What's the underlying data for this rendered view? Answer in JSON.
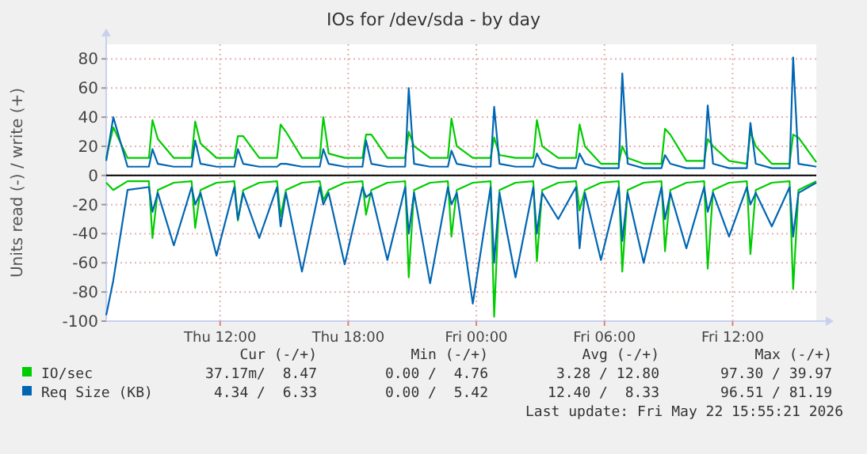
{
  "chart_data": {
    "type": "line",
    "title": "IOs for /dev/sda - by day",
    "ylabel": "Units read (-) / write (+)",
    "x": [
      "2026-05-21T06:40",
      "2026-05-21T07:00",
      "2026-05-21T07:40",
      "2026-05-21T08:40",
      "2026-05-21T08:50",
      "2026-05-21T09:05",
      "2026-05-21T09:50",
      "2026-05-21T10:40",
      "2026-05-21T10:50",
      "2026-05-21T11:05",
      "2026-05-21T11:50",
      "2026-05-21T12:40",
      "2026-05-21T12:50",
      "2026-05-21T13:05",
      "2026-05-21T13:50",
      "2026-05-21T14:40",
      "2026-05-21T14:50",
      "2026-05-21T15:05",
      "2026-05-21T15:50",
      "2026-05-21T16:40",
      "2026-05-21T16:50",
      "2026-05-21T17:05",
      "2026-05-21T17:50",
      "2026-05-21T18:40",
      "2026-05-21T18:50",
      "2026-05-21T19:05",
      "2026-05-21T19:50",
      "2026-05-21T20:40",
      "2026-05-21T20:50",
      "2026-05-21T21:05",
      "2026-05-21T21:50",
      "2026-05-21T22:40",
      "2026-05-21T22:50",
      "2026-05-21T23:05",
      "2026-05-21T23:50",
      "2026-05-22T00:40",
      "2026-05-22T00:50",
      "2026-05-22T01:05",
      "2026-05-22T01:50",
      "2026-05-22T02:40",
      "2026-05-22T02:50",
      "2026-05-22T03:05",
      "2026-05-22T03:50",
      "2026-05-22T04:40",
      "2026-05-22T04:50",
      "2026-05-22T05:05",
      "2026-05-22T05:50",
      "2026-05-22T06:40",
      "2026-05-22T06:50",
      "2026-05-22T07:05",
      "2026-05-22T07:50",
      "2026-05-22T08:40",
      "2026-05-22T08:50",
      "2026-05-22T09:05",
      "2026-05-22T09:50",
      "2026-05-22T10:40",
      "2026-05-22T10:50",
      "2026-05-22T11:05",
      "2026-05-22T11:50",
      "2026-05-22T12:40",
      "2026-05-22T12:50",
      "2026-05-22T13:05",
      "2026-05-22T13:50",
      "2026-05-22T14:40",
      "2026-05-22T14:50",
      "2026-05-22T15:05",
      "2026-05-22T15:55"
    ],
    "series": [
      {
        "name": "IO/sec",
        "color": "#00cc00",
        "values": [
          12,
          33,
          12,
          12,
          38,
          25,
          12,
          12,
          37,
          22,
          12,
          12,
          27,
          27,
          12,
          12,
          35,
          30,
          12,
          12,
          40,
          15,
          12,
          12,
          28,
          28,
          12,
          12,
          30,
          20,
          12,
          12,
          39,
          20,
          12,
          12,
          26,
          14,
          12,
          12,
          38,
          20,
          12,
          12,
          35,
          20,
          8,
          8,
          20,
          12,
          8,
          8,
          32,
          28,
          10,
          10,
          25,
          20,
          10,
          8,
          30,
          20,
          8,
          8,
          28,
          26,
          9
        ]
      },
      {
        "color": "#00cc00",
        "values": [
          -5,
          -10,
          -4,
          -4,
          -43,
          -10,
          -5,
          -4,
          -36,
          -10,
          -5,
          -4,
          -31,
          -10,
          -5,
          -4,
          -28,
          -10,
          -5,
          -4,
          -17,
          -10,
          -5,
          -4,
          -27,
          -10,
          -5,
          -4,
          -70,
          -10,
          -5,
          -4,
          -42,
          -10,
          -5,
          -4,
          -97,
          -10,
          -5,
          -4,
          -59,
          -10,
          -5,
          -4,
          -24,
          -10,
          -5,
          -4,
          -66,
          -10,
          -5,
          -4,
          -52,
          -10,
          -5,
          -4,
          -64,
          -10,
          -5,
          -4,
          -54,
          -10,
          -5,
          -4,
          -78,
          -10,
          -4
        ]
      },
      {
        "name": "Req Size (KB)",
        "color": "#0066b3",
        "values": [
          10,
          40,
          6,
          6,
          18,
          8,
          6,
          6,
          24,
          8,
          6,
          6,
          18,
          8,
          6,
          6,
          8,
          8,
          6,
          6,
          18,
          8,
          6,
          6,
          24,
          8,
          6,
          6,
          60,
          8,
          6,
          6,
          17,
          8,
          6,
          6,
          47,
          8,
          6,
          6,
          15,
          8,
          5,
          5,
          15,
          8,
          5,
          5,
          70,
          8,
          5,
          5,
          14,
          8,
          5,
          5,
          48,
          8,
          5,
          5,
          36,
          8,
          5,
          5,
          81,
          8,
          6
        ]
      },
      {
        "color": "#0066b3",
        "values": [
          -96,
          -72,
          -10,
          -8,
          -25,
          -12,
          -48,
          -8,
          -20,
          -12,
          -55,
          -8,
          -30,
          -12,
          -43,
          -8,
          -35,
          -12,
          -66,
          -8,
          -20,
          -12,
          -61,
          -8,
          -15,
          -12,
          -58,
          -8,
          -40,
          -12,
          -74,
          -8,
          -20,
          -12,
          -88,
          -8,
          -60,
          -12,
          -70,
          -8,
          -40,
          -12,
          -30,
          -8,
          -50,
          -12,
          -58,
          -8,
          -45,
          -12,
          -60,
          -8,
          -30,
          -12,
          -50,
          -8,
          -25,
          -12,
          -42,
          -8,
          -20,
          -12,
          -35,
          -8,
          -42,
          -12,
          -5
        ]
      }
    ],
    "xlim": [
      "2026-05-21T06:40",
      "2026-05-22T15:55"
    ],
    "xticks": [
      {
        "value": "2026-05-21T12:00",
        "label": "Thu 12:00"
      },
      {
        "value": "2026-05-21T18:00",
        "label": "Thu 18:00"
      },
      {
        "value": "2026-05-22T00:00",
        "label": "Fri 00:00"
      },
      {
        "value": "2026-05-22T06:00",
        "label": "Fri 06:00"
      },
      {
        "value": "2026-05-22T12:00",
        "label": "Fri 12:00"
      }
    ],
    "ylim": [
      -100,
      90
    ],
    "yticks": [
      -100,
      -80,
      -60,
      -40,
      -20,
      0,
      20,
      40,
      60,
      80
    ],
    "grid": true,
    "legend": "bottom",
    "ref_lines": [
      {
        "axis": "y",
        "value": 0,
        "color": "#000000"
      }
    ],
    "annotations": [
      "Cur (-/+)",
      "Min (-/+)",
      "Avg (-/+)",
      "Max (-/+)",
      "37.17m/  8.47",
      "0.00 /  4.76",
      "3.28 / 12.80",
      "97.30 / 39.97",
      "4.34 /  6.33",
      "0.00 /  5.42",
      "12.40 /  8.33",
      "96.51 / 81.19",
      "Last update: Fri May 22 15:55:21 2026"
    ]
  }
}
